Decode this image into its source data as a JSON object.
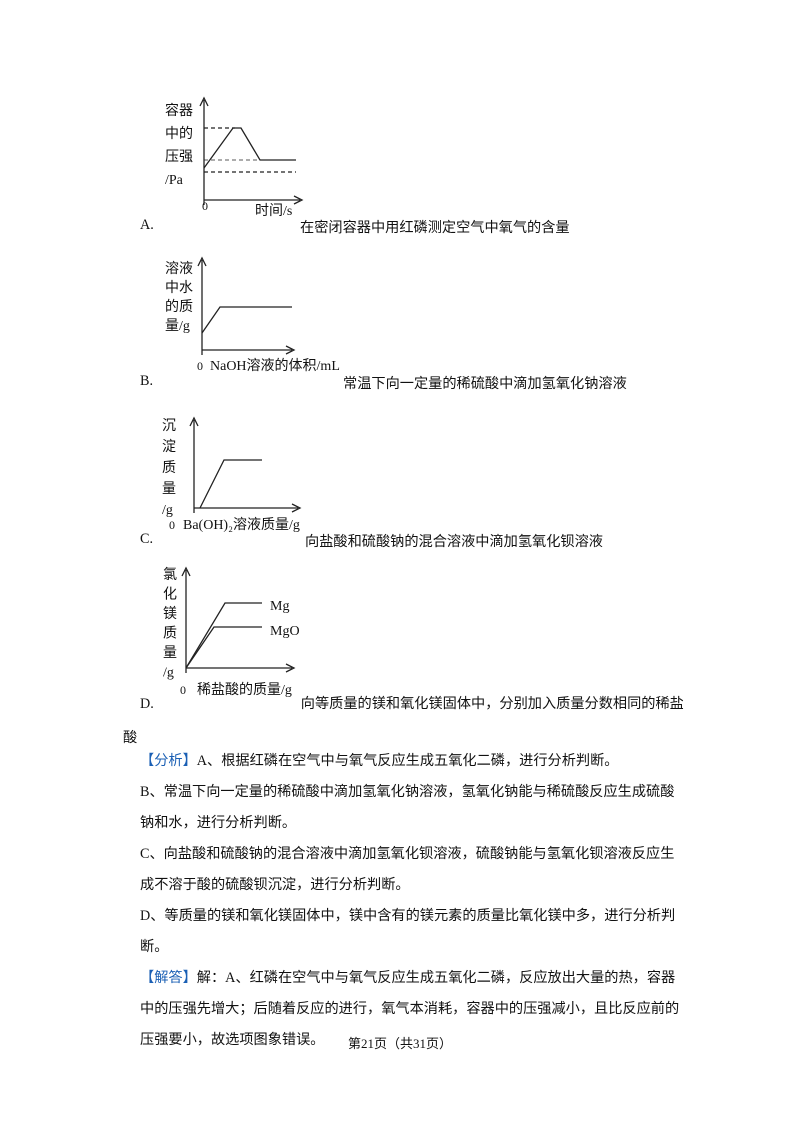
{
  "options": [
    {
      "letter": "A.",
      "text": "在密闭容器中用红磷测定空气中氧气的含量",
      "graph": {
        "y_label": [
          "容器",
          "中的",
          "压强",
          "/Pa"
        ],
        "origin": "0",
        "x_label": "时间/s"
      }
    },
    {
      "letter": "B.",
      "text": "常温下向一定量的稀硫酸中滴加氢氧化钠溶液",
      "graph": {
        "y_label": [
          "溶液",
          "中水",
          "的质",
          "量/g"
        ],
        "origin": "0",
        "x_label": "NaOH溶液的体积/mL"
      }
    },
    {
      "letter": "C.",
      "text": "向盐酸和硫酸钠的混合溶液中滴加氢氧化钡溶液",
      "graph": {
        "y_label": [
          "沉",
          "淀",
          "质",
          "量",
          "/g"
        ],
        "origin": "0",
        "x_label": "Ba(OH)₂溶液质量/g"
      }
    },
    {
      "letter": "D.",
      "text": "向等质量的镁和氧化镁固体中，分别加入质量分数相同的稀盐酸",
      "graph": {
        "y_label": [
          "氯",
          "化",
          "镁",
          "质",
          "量",
          "/g"
        ],
        "origin": "0",
        "x_label": "稀盐酸的质量/g",
        "line_labels": [
          "Mg",
          "MgO"
        ]
      }
    }
  ],
  "analysis": {
    "tag": "【分析】",
    "lines": [
      "A、根据红磷在空气中与氧气反应生成五氧化二磷，进行分析判断。",
      "B、常温下向一定量的稀硫酸中滴加氢氧化钠溶液，氢氧化钠能与稀硫酸反应生成硫酸钠和水，进行分析判断。",
      "C、向盐酸和硫酸钠的混合溶液中滴加氢氧化钡溶液，硫酸钠能与氢氧化钡溶液反应生成不溶于酸的硫酸钡沉淀，进行分析判断。",
      "D、等质量的镁和氧化镁固体中，镁中含有的镁元素的质量比氧化镁中多，进行分析判断。"
    ]
  },
  "answer": {
    "tag": "【解答】",
    "text": "解：A、红磷在空气中与氧气反应生成五氧化二磷，反应放出大量的热，容器中的压强先增大；后随着反应的进行，氧气本消耗，容器中的压强减小，且比反应前的压强要小，故选项图象错误。"
  },
  "footer": "第21页（共31页）"
}
